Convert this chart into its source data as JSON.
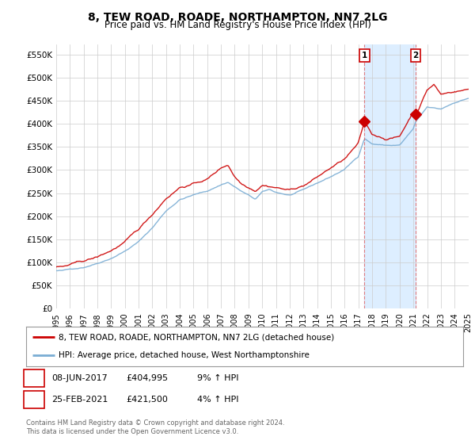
{
  "title": "8, TEW ROAD, ROADE, NORTHAMPTON, NN7 2LG",
  "subtitle": "Price paid vs. HM Land Registry's House Price Index (HPI)",
  "hpi_color": "#7aadd4",
  "price_color": "#cc0000",
  "vline_color": "#e06060",
  "shade_color": "#ddeeff",
  "background_color": "#ffffff",
  "plot_bg_color": "#ffffff",
  "grid_color": "#cccccc",
  "ylim": [
    0,
    572000
  ],
  "yticks": [
    0,
    50000,
    100000,
    150000,
    200000,
    250000,
    300000,
    350000,
    400000,
    450000,
    500000,
    550000
  ],
  "sale1_date": "08-JUN-2017",
  "sale1_price": 404995,
  "sale1_label": "1",
  "sale1_pct": "9% ↑ HPI",
  "sale2_date": "25-FEB-2021",
  "sale2_price": 421500,
  "sale2_label": "2",
  "sale2_pct": "4% ↑ HPI",
  "legend_line1": "8, TEW ROAD, ROADE, NORTHAMPTON, NN7 2LG (detached house)",
  "legend_line2": "HPI: Average price, detached house, West Northamptonshire",
  "footer1": "Contains HM Land Registry data © Crown copyright and database right 2024.",
  "footer2": "This data is licensed under the Open Government Licence v3.0.",
  "sale1_x": 2017.44,
  "sale2_x": 2021.15,
  "xmin": 1995,
  "xmax": 2025
}
